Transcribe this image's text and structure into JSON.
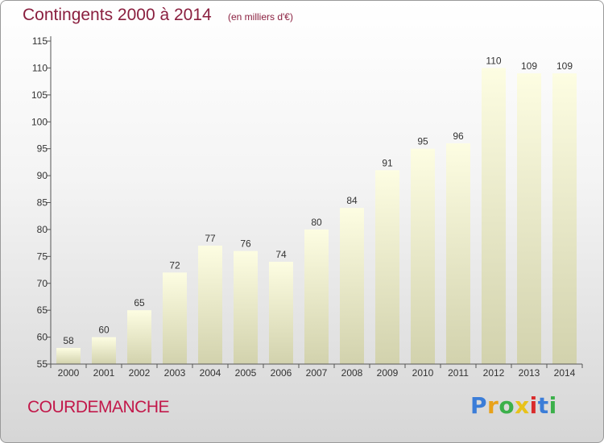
{
  "title": "Contingents 2000 à 2014",
  "subtitle": "(en milliers d'€)",
  "commune": "COURDEMANCHE",
  "logo": {
    "letters": [
      {
        "ch": "P",
        "color": "#3b7dd8"
      },
      {
        "ch": "r",
        "color": "#e8a21a"
      },
      {
        "ch": "o",
        "color": "#3bb04a"
      },
      {
        "ch": "x",
        "color": "#e8c21a"
      },
      {
        "ch": "i",
        "color": "#d92b2b"
      },
      {
        "ch": "t",
        "color": "#3b7dd8"
      },
      {
        "ch": "i",
        "color": "#3bb04a"
      }
    ]
  },
  "colors": {
    "bar_top": "#fdfde2",
    "bar_bottom": "#d2d2ad",
    "title": "#8a1f3f",
    "commune": "#c2184a"
  },
  "chart_data": {
    "type": "bar",
    "categories": [
      "2000",
      "2001",
      "2002",
      "2003",
      "2004",
      "2005",
      "2006",
      "2007",
      "2008",
      "2009",
      "2010",
      "2011",
      "2012",
      "2013",
      "2014"
    ],
    "values": [
      58,
      60,
      65,
      72,
      77,
      76,
      74,
      80,
      84,
      91,
      95,
      96,
      110,
      109,
      109
    ],
    "ylim": [
      55,
      115
    ],
    "yticks": [
      55,
      60,
      65,
      70,
      75,
      80,
      85,
      90,
      95,
      100,
      105,
      110,
      115
    ],
    "grid": false
  }
}
